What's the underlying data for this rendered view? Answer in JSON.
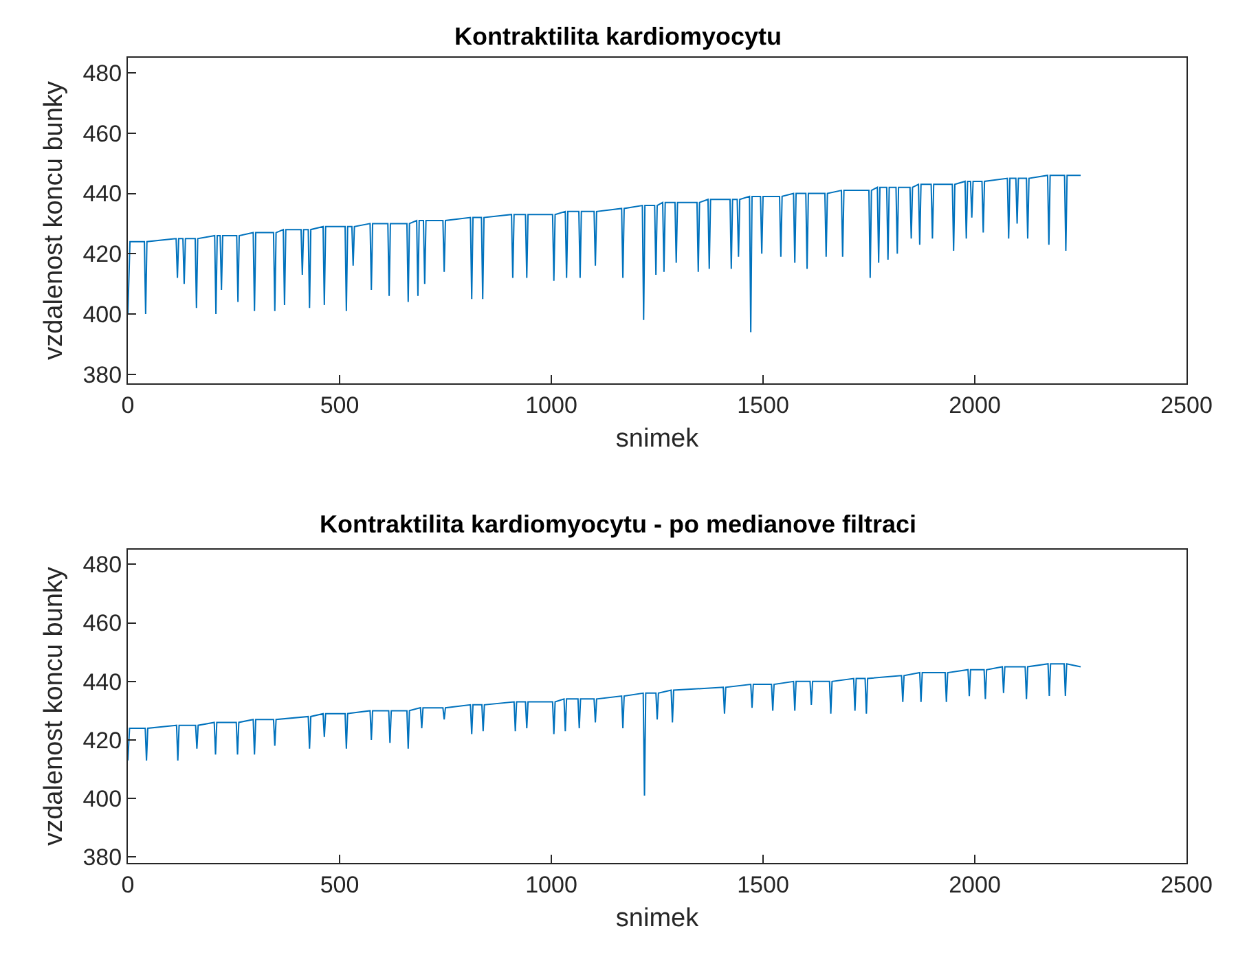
{
  "chart_data": [
    {
      "type": "line",
      "title": "Kontraktilita kardiomyocytu",
      "xlabel": "snimek",
      "ylabel": "vzdalenost koncu bunky",
      "xlim": [
        0,
        2500
      ],
      "xticks": [
        0,
        500,
        1000,
        1500,
        2000,
        2500
      ],
      "ylim": [
        377,
        485
      ],
      "yticks": [
        380,
        400,
        420,
        440,
        460,
        480
      ],
      "series": [
        {
          "color": "#0072bd",
          "x": [
            0,
            5,
            39,
            42,
            45,
            114,
            117,
            120,
            130,
            133,
            136,
            159,
            162,
            165,
            205,
            208,
            211,
            218,
            221,
            224,
            257,
            260,
            263,
            296,
            299,
            302,
            344,
            347,
            350,
            367,
            370,
            373,
            409,
            412,
            415,
            426,
            429,
            432,
            461,
            464,
            467,
            513,
            516,
            519,
            529,
            532,
            535,
            572,
            575,
            578,
            614,
            617,
            620,
            659,
            662,
            665,
            682,
            685,
            688,
            698,
            701,
            704,
            744,
            747,
            750,
            809,
            812,
            815,
            835,
            838,
            841,
            906,
            909,
            912,
            939,
            942,
            945,
            1003,
            1006,
            1009,
            1033,
            1036,
            1039,
            1065,
            1068,
            1071,
            1101,
            1104,
            1107,
            1166,
            1169,
            1172,
            1215,
            1218,
            1221,
            1244,
            1247,
            1250,
            1263,
            1266,
            1269,
            1292,
            1295,
            1298,
            1344,
            1347,
            1350,
            1370,
            1373,
            1376,
            1422,
            1425,
            1428,
            1439,
            1442,
            1445,
            1468,
            1471,
            1474,
            1494,
            1497,
            1500,
            1539,
            1542,
            1545,
            1572,
            1575,
            1578,
            1601,
            1604,
            1607,
            1646,
            1649,
            1652,
            1685,
            1688,
            1691,
            1750,
            1753,
            1756,
            1770,
            1773,
            1776,
            1792,
            1795,
            1798,
            1814,
            1817,
            1820,
            1847,
            1850,
            1853,
            1867,
            1870,
            1873,
            1897,
            1900,
            1903,
            1947,
            1950,
            1953,
            1977,
            1980,
            1983,
            1990,
            1993,
            1996,
            2017,
            2020,
            2023,
            2077,
            2080,
            2083,
            2097,
            2100,
            2103,
            2122,
            2125,
            2128,
            2172,
            2175,
            2178,
            2212,
            2215,
            2218,
            2250
          ],
          "values": [
            400,
            424,
            424,
            400,
            424,
            425,
            412,
            425,
            425,
            410,
            425,
            425,
            402,
            425,
            426,
            400,
            426,
            426,
            408,
            426,
            426,
            404,
            426,
            427,
            401,
            427,
            427,
            401,
            427,
            428,
            403,
            428,
            428,
            413,
            428,
            428,
            402,
            428,
            429,
            403,
            429,
            429,
            401,
            429,
            429,
            416,
            429,
            430,
            408,
            430,
            430,
            406,
            430,
            430,
            404,
            430,
            431,
            406,
            431,
            431,
            410,
            431,
            431,
            414,
            431,
            432,
            405,
            432,
            432,
            405,
            432,
            433,
            412,
            433,
            433,
            412,
            433,
            433,
            411,
            433,
            434,
            412,
            434,
            434,
            412,
            434,
            434,
            416,
            434,
            435,
            412,
            435,
            436,
            398,
            436,
            436,
            413,
            436,
            437,
            414,
            437,
            437,
            417,
            437,
            437,
            414,
            437,
            438,
            415,
            438,
            438,
            415,
            438,
            438,
            419,
            438,
            439,
            394,
            439,
            439,
            420,
            439,
            439,
            419,
            439,
            440,
            417,
            440,
            440,
            415,
            440,
            440,
            419,
            440,
            441,
            419,
            441,
            441,
            412,
            441,
            442,
            417,
            442,
            442,
            418,
            442,
            442,
            420,
            442,
            442,
            425,
            442,
            443,
            423,
            443,
            443,
            425,
            443,
            443,
            421,
            443,
            444,
            425,
            444,
            444,
            432,
            444,
            444,
            427,
            444,
            445,
            425,
            445,
            445,
            430,
            445,
            445,
            425,
            445,
            446,
            423,
            446,
            446,
            421,
            446,
            446
          ]
        }
      ]
    },
    {
      "type": "line",
      "title": "Kontraktilita kardiomyocytu - po medianove filtraci",
      "xlabel": "snimek",
      "ylabel": "vzdalenost koncu bunky",
      "xlim": [
        0,
        2500
      ],
      "xticks": [
        0,
        500,
        1000,
        1500,
        2000,
        2500
      ],
      "ylim": [
        378,
        485
      ],
      "yticks": [
        380,
        400,
        420,
        440,
        460,
        480
      ],
      "series": [
        {
          "color": "#0072bd",
          "x": [
            0,
            4,
            41,
            44,
            47,
            115,
            118,
            121,
            160,
            163,
            166,
            204,
            207,
            210,
            256,
            259,
            262,
            296,
            299,
            302,
            344,
            347,
            350,
            426,
            429,
            432,
            461,
            464,
            467,
            513,
            516,
            519,
            572,
            575,
            578,
            616,
            619,
            622,
            659,
            662,
            665,
            691,
            694,
            697,
            744,
            747,
            750,
            809,
            812,
            815,
            836,
            839,
            842,
            912,
            915,
            918,
            939,
            942,
            945,
            1003,
            1006,
            1009,
            1030,
            1033,
            1036,
            1063,
            1066,
            1069,
            1101,
            1104,
            1107,
            1166,
            1169,
            1172,
            1217,
            1220,
            1223,
            1247,
            1250,
            1253,
            1283,
            1286,
            1289,
            1406,
            1409,
            1412,
            1471,
            1474,
            1477,
            1520,
            1523,
            1526,
            1572,
            1575,
            1578,
            1611,
            1614,
            1617,
            1657,
            1660,
            1663,
            1714,
            1717,
            1720,
            1741,
            1744,
            1747,
            1827,
            1830,
            1833,
            1870,
            1873,
            1876,
            1930,
            1933,
            1936,
            1984,
            1987,
            1990,
            2022,
            2025,
            2028,
            2065,
            2068,
            2071,
            2119,
            2122,
            2125,
            2173,
            2176,
            2179,
            2211,
            2214,
            2217,
            2250
          ],
          "values": [
            413,
            424,
            424,
            413,
            424,
            425,
            413,
            425,
            425,
            417,
            425,
            426,
            415,
            426,
            426,
            415,
            426,
            427,
            415,
            427,
            427,
            418,
            427,
            428,
            417,
            428,
            429,
            421,
            429,
            429,
            417,
            429,
            430,
            420,
            430,
            430,
            419,
            430,
            430,
            417,
            430,
            431,
            424,
            431,
            431,
            427,
            431,
            432,
            422,
            432,
            432,
            423,
            432,
            433,
            423,
            433,
            433,
            424,
            433,
            433,
            422,
            433,
            434,
            423,
            434,
            434,
            424,
            434,
            434,
            426,
            434,
            435,
            424,
            435,
            436,
            401,
            436,
            436,
            427,
            436,
            437,
            426,
            437,
            438,
            429,
            438,
            439,
            431,
            439,
            439,
            430,
            439,
            440,
            430,
            440,
            440,
            432,
            440,
            440,
            429,
            440,
            441,
            430,
            441,
            441,
            429,
            441,
            442,
            433,
            442,
            443,
            433,
            443,
            443,
            433,
            443,
            444,
            435,
            444,
            444,
            434,
            444,
            445,
            436,
            445,
            445,
            434,
            445,
            446,
            435,
            446,
            446,
            435,
            446,
            445
          ]
        }
      ]
    }
  ]
}
